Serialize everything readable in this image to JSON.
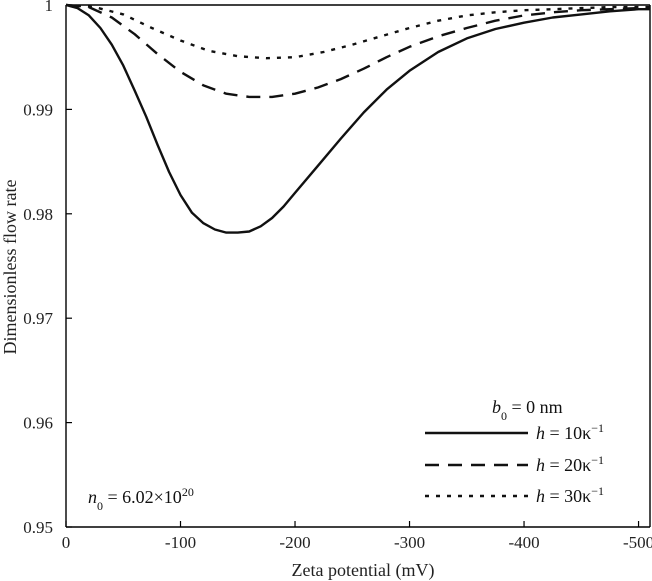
{
  "chart_data": {
    "type": "line",
    "title": "",
    "xlabel": "Zeta potential (mV)",
    "ylabel": "Dimensionless flow rate",
    "xlim": [
      0,
      -510
    ],
    "ylim": [
      0.95,
      1.0
    ],
    "xticks": [
      0,
      -100,
      -200,
      -300,
      -400,
      -500
    ],
    "xtick_labels": [
      "0",
      "-100",
      "-200",
      "-300",
      "-400",
      "-500"
    ],
    "yticks": [
      0.95,
      0.96,
      0.97,
      0.98,
      0.99,
      1.0
    ],
    "ytick_labels": [
      "0.95",
      "0.96",
      "0.97",
      "0.98",
      "0.99",
      "1"
    ],
    "legend": {
      "position": "bottom-right",
      "title_var": "b",
      "title_sub": "0",
      "title_rest": " = 0 nm"
    },
    "annotation": {
      "var": "n",
      "sub": "0",
      "text": " = 6.02×10",
      "sup": "20"
    },
    "series": [
      {
        "name": "h = 10κ⁻¹",
        "label_var": "h",
        "label_rest": " = 10κ",
        "label_sup": "−1",
        "dash": "solid",
        "x": [
          0,
          -10,
          -20,
          -30,
          -40,
          -50,
          -60,
          -70,
          -80,
          -90,
          -100,
          -110,
          -120,
          -130,
          -140,
          -150,
          -160,
          -170,
          -180,
          -190,
          -200,
          -220,
          -240,
          -260,
          -280,
          -300,
          -325,
          -350,
          -375,
          -400,
          -425,
          -450,
          -475,
          -500,
          -510
        ],
        "y": [
          1.0,
          0.9997,
          0.999,
          0.9978,
          0.9962,
          0.9942,
          0.9918,
          0.9893,
          0.9866,
          0.984,
          0.9818,
          0.9801,
          0.9791,
          0.9785,
          0.9782,
          0.9782,
          0.9783,
          0.9788,
          0.9796,
          0.9807,
          0.982,
          0.9846,
          0.9872,
          0.9897,
          0.9919,
          0.9937,
          0.9955,
          0.9968,
          0.9977,
          0.9983,
          0.9988,
          0.9991,
          0.9994,
          0.9996,
          0.9996
        ]
      },
      {
        "name": "h = 20κ⁻¹",
        "label_var": "h",
        "label_rest": " = 20κ",
        "label_sup": "−1",
        "dash": "dashed",
        "x": [
          0,
          -20,
          -40,
          -60,
          -80,
          -100,
          -120,
          -140,
          -160,
          -180,
          -200,
          -220,
          -240,
          -260,
          -280,
          -300,
          -325,
          -350,
          -375,
          -400,
          -425,
          -450,
          -475,
          -500,
          -510
        ],
        "y": [
          1.0,
          0.9998,
          0.9988,
          0.9972,
          0.9953,
          0.9936,
          0.9923,
          0.9915,
          0.9912,
          0.9912,
          0.9915,
          0.9921,
          0.9929,
          0.9939,
          0.995,
          0.996,
          0.997,
          0.9978,
          0.9985,
          0.999,
          0.9993,
          0.9995,
          0.9996,
          0.9997,
          0.9997
        ]
      },
      {
        "name": "h = 30κ⁻¹",
        "label_var": "h",
        "label_rest": " = 30κ",
        "label_sup": "−1",
        "dash": "dotted",
        "x": [
          0,
          -25,
          -50,
          -75,
          -100,
          -125,
          -150,
          -175,
          -200,
          -225,
          -250,
          -275,
          -300,
          -325,
          -350,
          -375,
          -400,
          -425,
          -450,
          -475,
          -500,
          -510
        ],
        "y": [
          1.0,
          0.9998,
          0.9991,
          0.9978,
          0.9966,
          0.9956,
          0.9951,
          0.9949,
          0.995,
          0.9955,
          0.9962,
          0.997,
          0.9978,
          0.9985,
          0.999,
          0.9993,
          0.9995,
          0.9996,
          0.9997,
          0.9998,
          0.9998,
          0.9998
        ]
      }
    ]
  }
}
